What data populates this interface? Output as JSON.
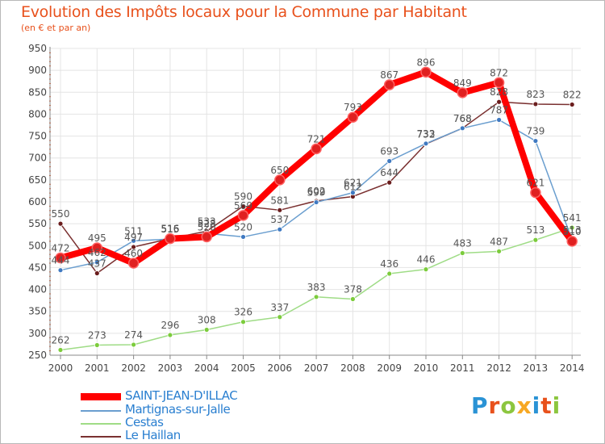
{
  "colors": {
    "title": "#e8511c",
    "grid": "#e4e4e4",
    "axis": "#666666",
    "label": "#555555"
  },
  "logo": {
    "letters": [
      "P",
      "r",
      "o",
      "x",
      "i",
      "t",
      "i"
    ],
    "colors": [
      "#2a93d5",
      "#e8511c",
      "#8cc63f",
      "#f7a823",
      "#2a93d5",
      "#e8511c",
      "#8cc63f"
    ]
  },
  "chart_data": {
    "type": "line",
    "title": "Evolution des Impôts locaux pour la Commune par Habitant",
    "subtitle": "(en € et par an)",
    "xlabel": "",
    "ylabel": "",
    "x": [
      "2000",
      "2001",
      "2002",
      "2003",
      "2004",
      "2005",
      "2006",
      "2007",
      "2008",
      "2009",
      "2010",
      "2011",
      "2012",
      "2013",
      "2014"
    ],
    "ylim": [
      250,
      950
    ],
    "yticks": [
      250,
      300,
      350,
      400,
      450,
      500,
      550,
      600,
      650,
      700,
      750,
      800,
      850,
      900,
      950
    ],
    "ytick_labels": [
      "250",
      "300",
      "350",
      "400",
      "450",
      "500",
      "550",
      "600",
      "650",
      "700",
      "750",
      "800",
      "850",
      "900",
      "950"
    ],
    "grid": true,
    "legend_position": "bottom-left",
    "series": [
      {
        "name": "Cestas",
        "color": "#9fdc86",
        "marker": "#7ccc3c",
        "values": [
          262,
          273,
          274,
          296,
          308,
          326,
          337,
          383,
          378,
          436,
          446,
          483,
          487,
          513,
          541
        ],
        "labels": [
          "262",
          "273",
          "274",
          "296",
          "308",
          "326",
          "337",
          "383",
          "378",
          "436",
          "446",
          "483",
          "487",
          "513",
          "541"
        ]
      },
      {
        "name": "Le Haillan",
        "color": "#7a3030",
        "marker": "#6a1d1d",
        "values": [
          550,
          437,
          497,
          516,
          533,
          590,
          581,
          602,
          612,
          644,
          732,
          768,
          828,
          823,
          822
        ],
        "labels": [
          "550",
          "437",
          "497",
          "516",
          "533",
          "590",
          "581",
          "602",
          "612",
          "644",
          "732",
          "768",
          "828",
          "823",
          "822"
        ]
      },
      {
        "name": "Martignas-sur-Jalle",
        "color": "#6a9ecf",
        "marker": "#3f79c1",
        "values": [
          444,
          462,
          511,
          515,
          528,
          520,
          537,
          599,
          621,
          693,
          733,
          768,
          787,
          739,
          513
        ],
        "labels": [
          "444",
          "462",
          "511",
          "515",
          "528",
          "520",
          "537",
          "599",
          "621",
          "693",
          "733",
          "768",
          "787",
          "739",
          "513"
        ]
      },
      {
        "name": "SAINT-JEAN-D'ILLAC",
        "color": "#ff0000",
        "marker": "#e02020",
        "values": [
          472,
          495,
          460,
          516,
          520,
          569,
          650,
          721,
          793,
          867,
          896,
          849,
          872,
          621,
          510
        ],
        "labels": [
          "472",
          "495",
          "460",
          "516",
          "520",
          "569",
          "650",
          "721",
          "793",
          "867",
          "896",
          "849",
          "872",
          "621",
          "510"
        ]
      }
    ],
    "legend": [
      "SAINT-JEAN-D'ILLAC",
      "Martignas-sur-Jalle",
      "Cestas",
      "Le Haillan"
    ]
  }
}
